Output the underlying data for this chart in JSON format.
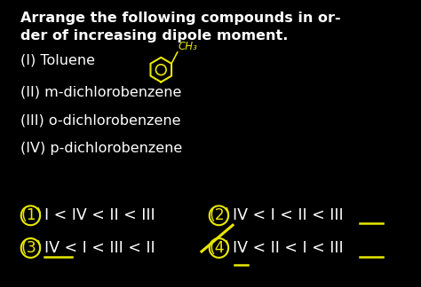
{
  "background_color": "#000000",
  "title_line1": "Arrange the following compounds in or-",
  "title_line2": "der of increasing dipole moment.",
  "compounds": [
    "(I) Toluene",
    "(II) m-dichlorobenzene",
    "(III) o-dichlorobenzene",
    "(IV) p-dichlorobenzene"
  ],
  "ch3_text": "CH₃",
  "options": [
    {
      "num": "(1)",
      "body": "I < IV < II < III",
      "col": 0
    },
    {
      "num": "(2)",
      "body": "IV < I < II < III",
      "col": 1
    },
    {
      "num": "(3)",
      "body": "IV < I < III < II",
      "col": 0
    },
    {
      "num": "(4)",
      "body": "IV < II < I < III",
      "col": 1
    }
  ],
  "text_color": "#ffffff",
  "yellow_color": "#e8e800",
  "title_fontsize": 11.5,
  "compound_fontsize": 11.5,
  "option_fontsize": 12.5
}
